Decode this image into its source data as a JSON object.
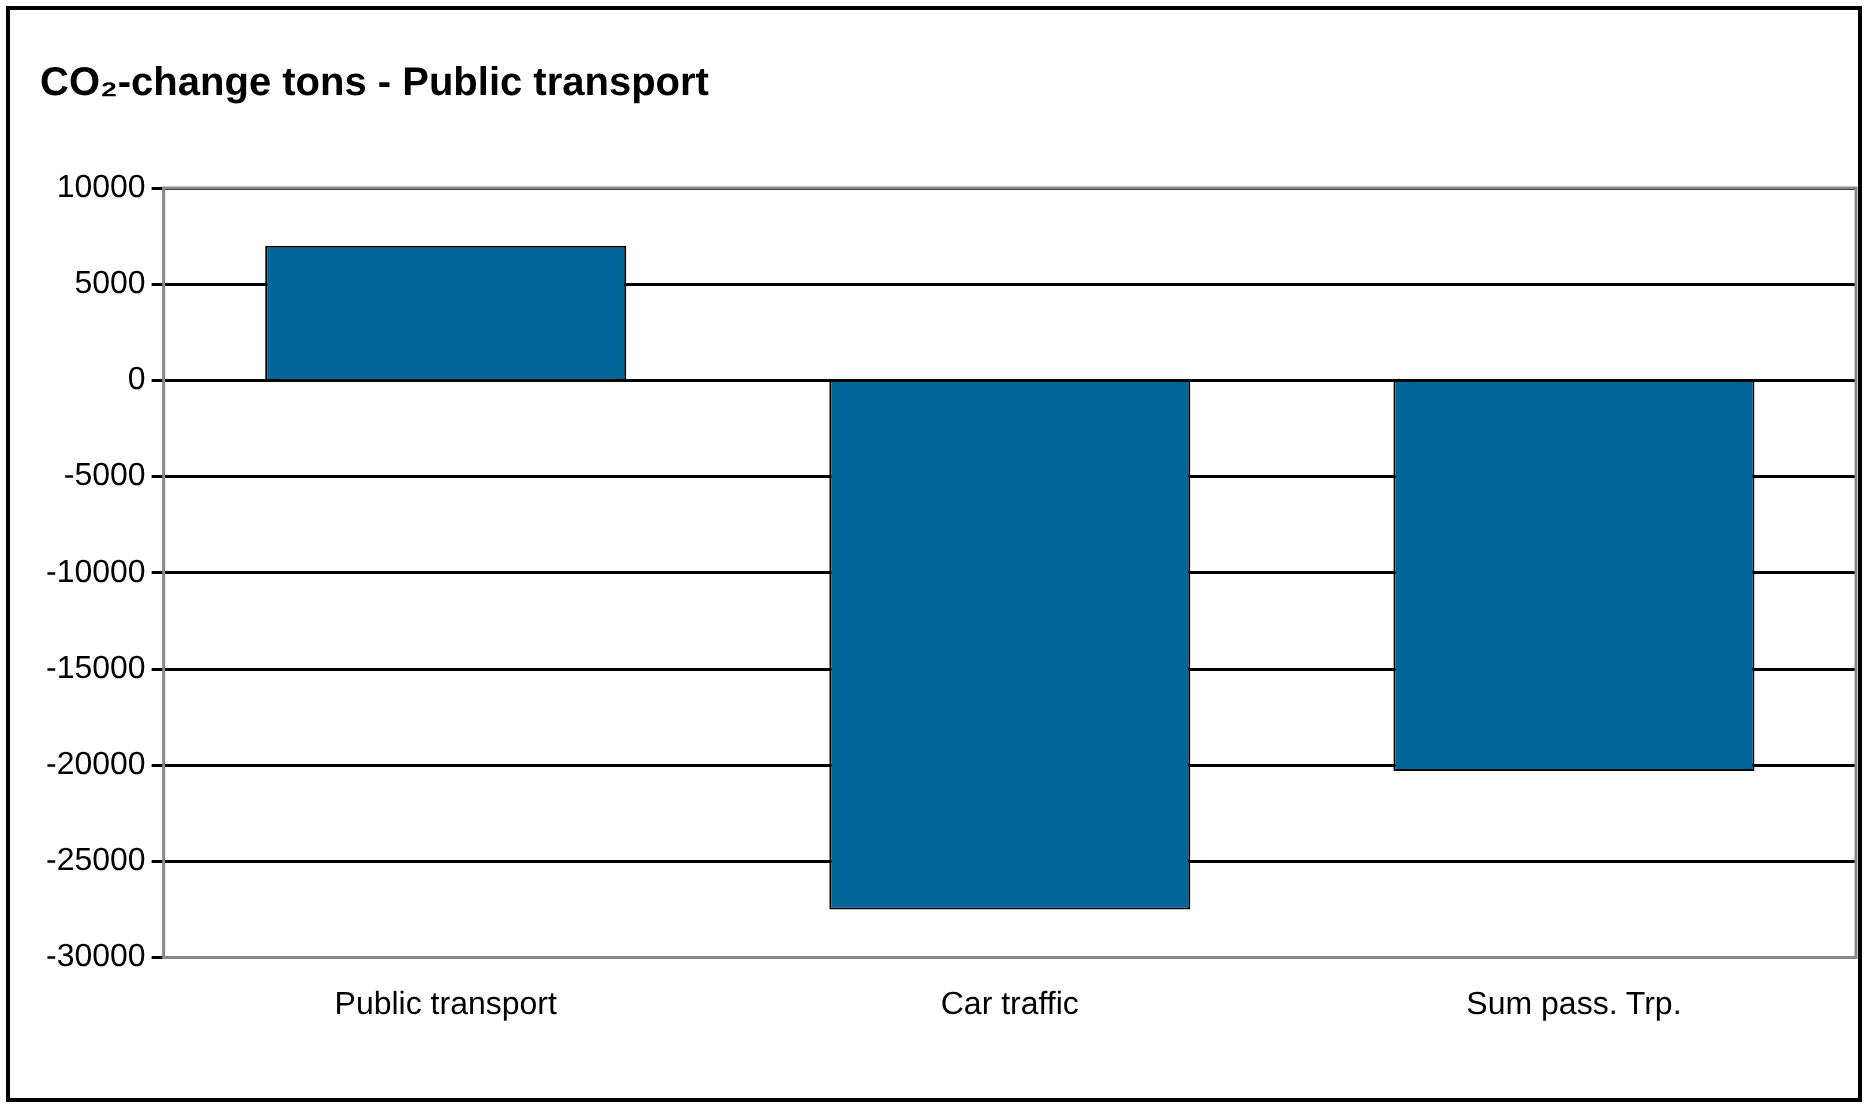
{
  "chart_data": {
    "type": "bar",
    "title": "CO₂-change tons - Public transport",
    "categories": [
      "Public transport",
      "Car traffic",
      "Sum pass. Trp."
    ],
    "values": [
      7000,
      -27500,
      -20300
    ],
    "color": "#006699",
    "ylim": [
      -30000,
      10000
    ],
    "yticks": [
      -30000,
      -25000,
      -20000,
      -15000,
      -10000,
      -5000,
      0,
      5000,
      10000
    ],
    "grid": "y",
    "legend": false
  }
}
